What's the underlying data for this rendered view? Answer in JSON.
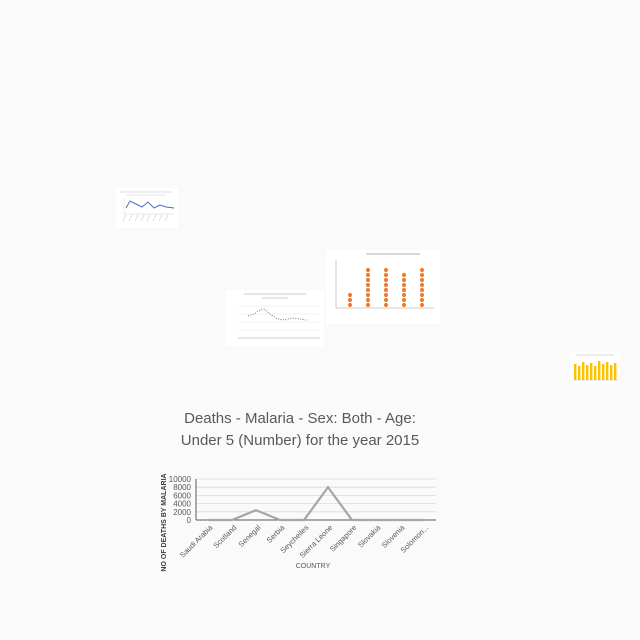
{
  "chart_data": [
    {
      "type": "line",
      "title": "Deaths - Malaria - Sex: Both - Age: Under 5 (Number) for the year 2015",
      "xlabel": "COUNTRY",
      "ylabel": "NO OF DEATHS BY MALARIA",
      "categories": [
        "Saudi Arabia",
        "Scotland",
        "Senegal",
        "Serbia",
        "Seychelles",
        "Sierra Leone",
        "Singapore",
        "Slovakia",
        "Slovenia",
        "Solomon..."
      ],
      "series": [
        {
          "values": [
            0,
            0,
            2400,
            0,
            0,
            8000,
            0,
            0,
            0,
            0
          ]
        }
      ],
      "ylim": [
        0,
        10000
      ],
      "yticks": [
        "10000",
        "8000",
        "6000",
        "4000",
        "2000",
        "0"
      ],
      "grid": true,
      "color": "#a6a6a6"
    }
  ]
}
